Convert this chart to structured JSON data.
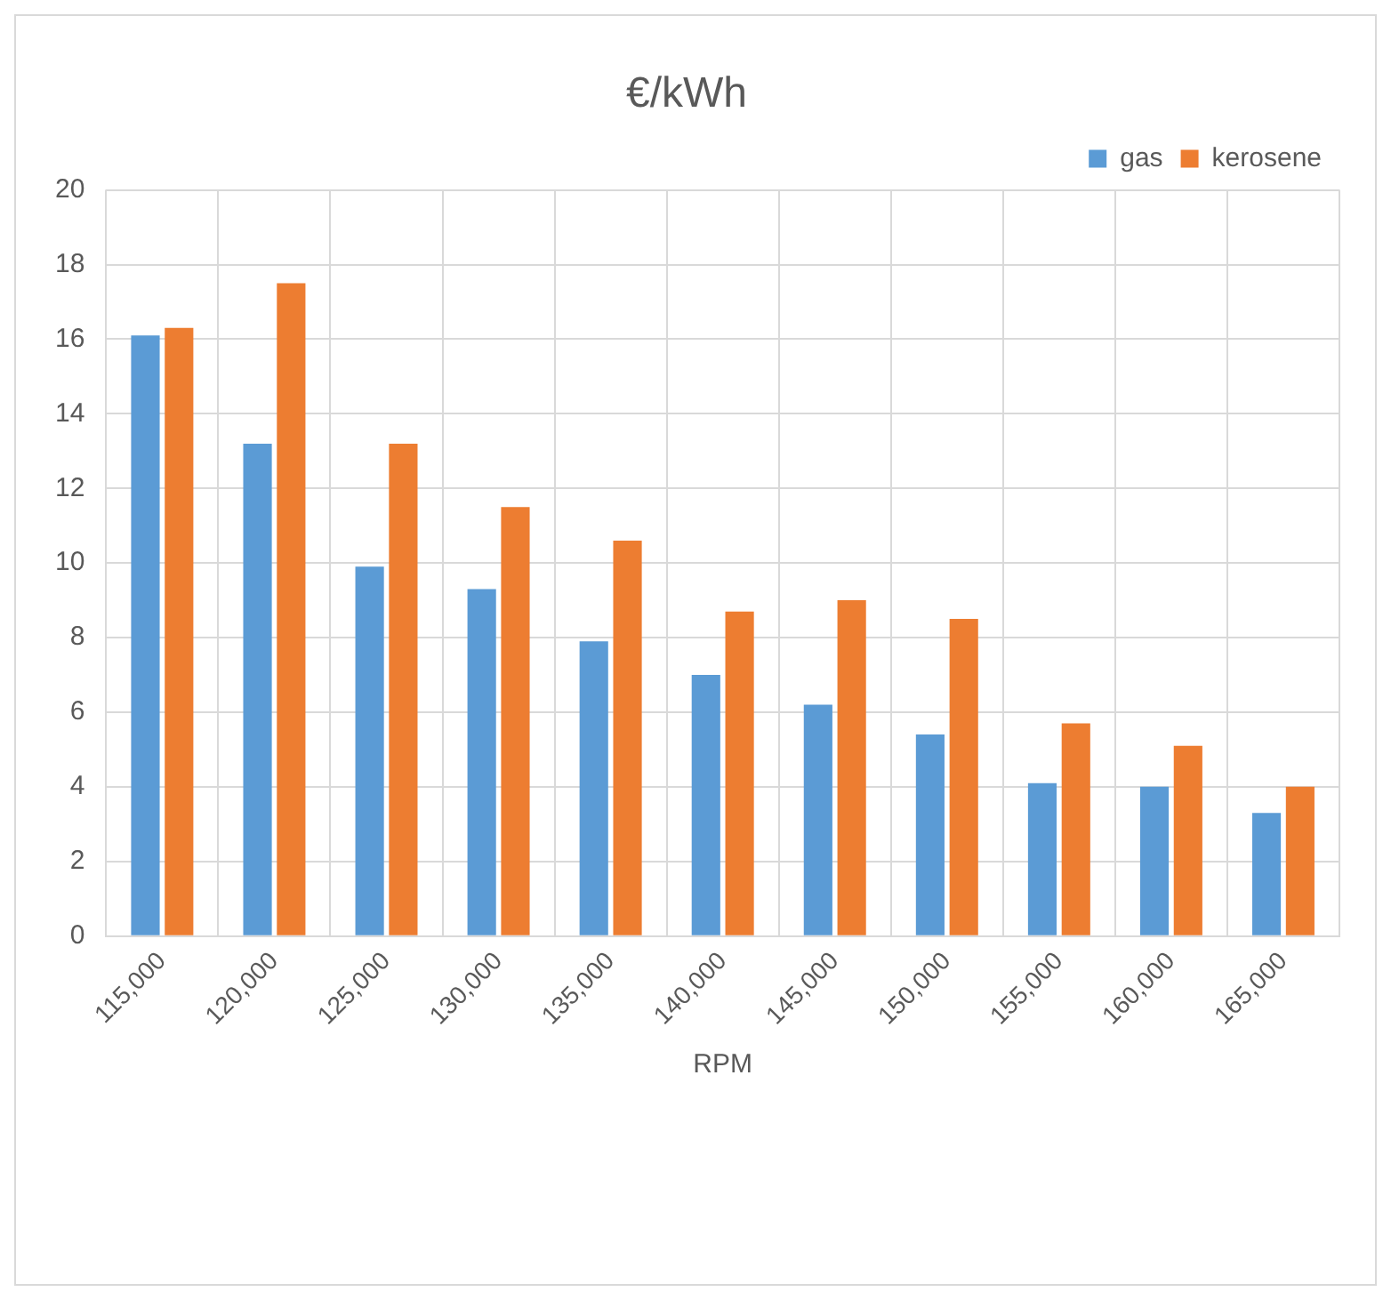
{
  "chart_data": {
    "type": "bar",
    "title": "€/kWh",
    "xlabel": "RPM",
    "categories": [
      "115,000",
      "120,000",
      "125,000",
      "130,000",
      "135,000",
      "140,000",
      "145,000",
      "150,000",
      "155,000",
      "160,000",
      "165,000"
    ],
    "series": [
      {
        "name": "gas",
        "color": "#5b9bd5",
        "values": [
          16.1,
          13.2,
          9.9,
          9.3,
          7.9,
          7.0,
          6.2,
          5.4,
          4.1,
          4.0,
          3.3
        ]
      },
      {
        "name": "kerosene",
        "color": "#ed7d31",
        "values": [
          16.3,
          17.5,
          13.2,
          11.5,
          10.6,
          8.7,
          9.0,
          8.5,
          5.7,
          5.1,
          4.0
        ]
      }
    ],
    "ylim": [
      0,
      20
    ],
    "yticks": [
      0,
      2,
      4,
      6,
      8,
      10,
      12,
      14,
      16,
      18,
      20
    ],
    "grid": true,
    "legend": "top right"
  }
}
